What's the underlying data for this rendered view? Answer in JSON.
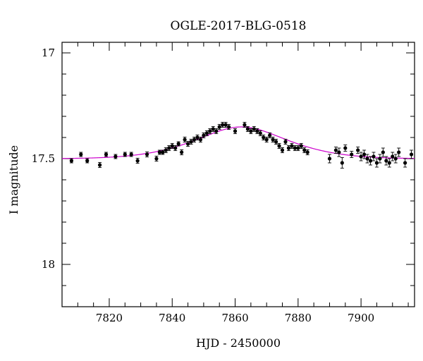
{
  "chart_data": {
    "type": "scatter",
    "title": "OGLE-2017-BLG-0518",
    "xlabel": "HJD - 2450000",
    "ylabel": "I magnitude",
    "xlim": [
      7805,
      7917
    ],
    "ylim": [
      18.2,
      16.95
    ],
    "y_inverted": true,
    "grid": false,
    "x_ticks": [
      7820,
      7840,
      7860,
      7880,
      7900
    ],
    "y_ticks": [
      17,
      17.5,
      18
    ],
    "x_tick_labels": [
      "7820",
      "7840",
      "7860",
      "7880",
      "7900"
    ],
    "y_tick_labels": [
      "17",
      "17.5",
      "18"
    ],
    "model_color": "#cc00cc",
    "data_color": "#000000",
    "series": [
      {
        "type": "points_with_errorbars",
        "x": [
          7808,
          7811,
          7813,
          7817,
          7819,
          7822,
          7825,
          7827,
          7829,
          7832,
          7835,
          7836,
          7837,
          7838,
          7839,
          7840,
          7841,
          7842,
          7843,
          7844,
          7845,
          7846,
          7847,
          7848,
          7849,
          7850,
          7851,
          7852,
          7853,
          7854,
          7855,
          7856,
          7857,
          7858,
          7860,
          7863,
          7864,
          7865,
          7866,
          7867,
          7868,
          7869,
          7870,
          7871,
          7872,
          7873,
          7874,
          7875,
          7876,
          7877,
          7878,
          7879,
          7880,
          7881,
          7882,
          7883,
          7890,
          7892,
          7893,
          7894,
          7895,
          7897,
          7899,
          7900,
          7901,
          7902,
          7903,
          7904,
          7905,
          7906,
          7907,
          7908,
          7909,
          7910,
          7911,
          7912,
          7914,
          7916
        ],
        "y": [
          17.51,
          17.48,
          17.51,
          17.53,
          17.48,
          17.49,
          17.48,
          17.48,
          17.51,
          17.48,
          17.5,
          17.47,
          17.47,
          17.46,
          17.45,
          17.44,
          17.45,
          17.43,
          17.47,
          17.41,
          17.43,
          17.42,
          17.41,
          17.4,
          17.41,
          17.39,
          17.38,
          17.37,
          17.36,
          17.37,
          17.35,
          17.34,
          17.34,
          17.35,
          17.37,
          17.34,
          17.36,
          17.37,
          17.36,
          17.37,
          17.38,
          17.4,
          17.41,
          17.39,
          17.41,
          17.42,
          17.44,
          17.46,
          17.42,
          17.45,
          17.44,
          17.45,
          17.45,
          17.44,
          17.46,
          17.47,
          17.5,
          17.46,
          17.47,
          17.52,
          17.45,
          17.48,
          17.46,
          17.49,
          17.48,
          17.5,
          17.51,
          17.49,
          17.52,
          17.5,
          17.47,
          17.51,
          17.52,
          17.49,
          17.5,
          17.47,
          17.52,
          17.48
        ],
        "err": [
          0.01,
          0.01,
          0.01,
          0.012,
          0.01,
          0.01,
          0.01,
          0.01,
          0.012,
          0.012,
          0.012,
          0.01,
          0.01,
          0.012,
          0.012,
          0.012,
          0.012,
          0.01,
          0.012,
          0.012,
          0.012,
          0.012,
          0.012,
          0.012,
          0.012,
          0.012,
          0.012,
          0.012,
          0.012,
          0.012,
          0.012,
          0.012,
          0.012,
          0.012,
          0.012,
          0.012,
          0.012,
          0.012,
          0.012,
          0.012,
          0.012,
          0.012,
          0.012,
          0.012,
          0.012,
          0.012,
          0.012,
          0.012,
          0.012,
          0.012,
          0.012,
          0.012,
          0.012,
          0.012,
          0.012,
          0.012,
          0.02,
          0.015,
          0.02,
          0.025,
          0.015,
          0.015,
          0.015,
          0.02,
          0.02,
          0.02,
          0.02,
          0.02,
          0.02,
          0.02,
          0.02,
          0.02,
          0.02,
          0.02,
          0.02,
          0.02,
          0.02,
          0.02
        ]
      },
      {
        "type": "model_curve",
        "t0": 7862,
        "baseline": 17.5,
        "peak": 17.35,
        "width": 17
      }
    ]
  }
}
